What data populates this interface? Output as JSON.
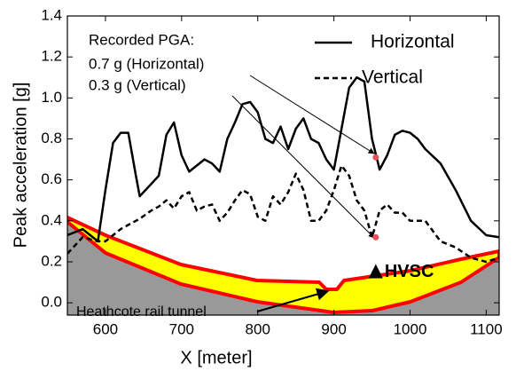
{
  "chart_data": {
    "type": "line",
    "xlabel": "X [meter]",
    "ylabel": "Peak acceleration [g]",
    "x": [
      550,
      570,
      590,
      600,
      610,
      620,
      630,
      640,
      645,
      660,
      670,
      680,
      690,
      700,
      710,
      720,
      730,
      740,
      750,
      760,
      770,
      780,
      790,
      800,
      810,
      820,
      830,
      840,
      850,
      860,
      870,
      880,
      890,
      900,
      910,
      920,
      930,
      940,
      950,
      960,
      970,
      980,
      990,
      1000,
      1010,
      1020,
      1040,
      1060,
      1080,
      1100,
      1117
    ],
    "series": [
      {
        "name": "Horizontal",
        "color": "#000000",
        "dash": "solid",
        "values": [
          0.33,
          0.36,
          0.3,
          0.55,
          0.78,
          0.83,
          0.83,
          0.62,
          0.52,
          0.58,
          0.62,
          0.82,
          0.88,
          0.72,
          0.64,
          0.67,
          0.7,
          0.68,
          0.64,
          0.8,
          0.88,
          0.97,
          0.98,
          0.93,
          0.8,
          0.78,
          0.86,
          0.75,
          0.85,
          0.9,
          0.8,
          0.78,
          0.7,
          0.65,
          0.85,
          1.05,
          1.1,
          1.08,
          0.8,
          0.65,
          0.72,
          0.82,
          0.84,
          0.83,
          0.8,
          0.75,
          0.68,
          0.55,
          0.4,
          0.33,
          0.32
        ]
      },
      {
        "name": "Vertical",
        "color": "#000000",
        "dash": "dashed",
        "values": [
          0.24,
          0.32,
          0.3,
          0.3,
          0.33,
          0.36,
          0.38,
          0.4,
          0.41,
          0.45,
          0.47,
          0.5,
          0.46,
          0.52,
          0.54,
          0.45,
          0.47,
          0.48,
          0.4,
          0.44,
          0.5,
          0.55,
          0.53,
          0.42,
          0.4,
          0.52,
          0.48,
          0.54,
          0.63,
          0.55,
          0.4,
          0.4,
          0.45,
          0.55,
          0.67,
          0.62,
          0.5,
          0.45,
          0.32,
          0.45,
          0.48,
          0.44,
          0.44,
          0.4,
          0.4,
          0.4,
          0.3,
          0.27,
          0.22,
          0.2,
          0.22
        ]
      }
    ],
    "recorded": {
      "title": "Recorded PGA:",
      "color": "#e8505b",
      "points": [
        {
          "label": "0.7 g (Horizontal)",
          "x": 955,
          "y": 0.71
        },
        {
          "label": "0.3 g (Vertical)",
          "x": 955,
          "y": 0.32
        }
      ]
    },
    "station": {
      "label": "HVSC",
      "x": 955,
      "y": 0.15
    },
    "tunnel_label": "Heathcote rail tunnel",
    "xlim": [
      550,
      1117
    ],
    "ylim": [
      -0.06,
      1.4
    ],
    "xticks": [
      600,
      700,
      800,
      900,
      1000,
      1100
    ],
    "yticks": [
      {
        "value": 0,
        "label": "0.0"
      },
      0.2,
      0.4,
      0.6,
      0.8,
      {
        "value": 1,
        "label": "1.0"
      },
      1.2,
      1.4
    ],
    "legend": "upper right"
  }
}
